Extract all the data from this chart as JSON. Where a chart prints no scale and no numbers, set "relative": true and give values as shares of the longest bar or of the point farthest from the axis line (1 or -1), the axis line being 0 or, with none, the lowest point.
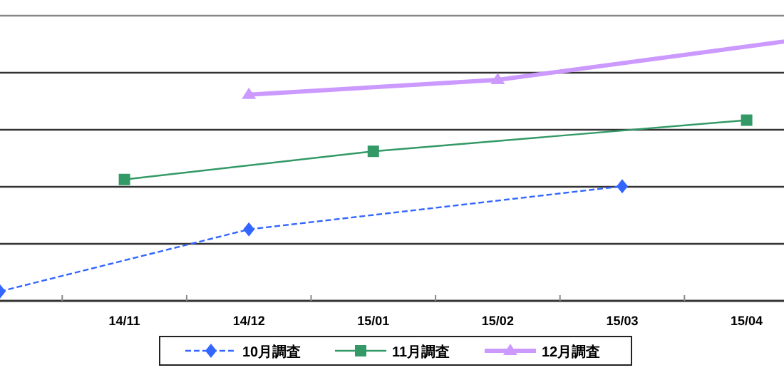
{
  "chart_data": {
    "type": "line",
    "relative": true,
    "categories": [
      null,
      "14/11",
      "14/12",
      "15/01",
      "15/02",
      "15/03",
      "15/04",
      null
    ],
    "series": [
      {
        "name": "10月調査",
        "color": "#3366ff",
        "values": [
          0.035,
          null,
          0.264,
          null,
          null,
          0.423,
          null,
          null
        ],
        "marker": "diamond",
        "line_style": "dashed"
      },
      {
        "name": "11月調査",
        "color": "#339966",
        "values": [
          null,
          0.448,
          null,
          0.552,
          null,
          null,
          0.667,
          null
        ],
        "marker": "square",
        "line_style": "solid"
      },
      {
        "name": "12月調査",
        "color": "#cc99ff",
        "values": [
          null,
          null,
          0.761,
          null,
          0.816,
          null,
          null,
          1.0
        ],
        "marker": "triangle",
        "line_style": "solid"
      }
    ],
    "grid": "y",
    "legend": "bottom"
  }
}
